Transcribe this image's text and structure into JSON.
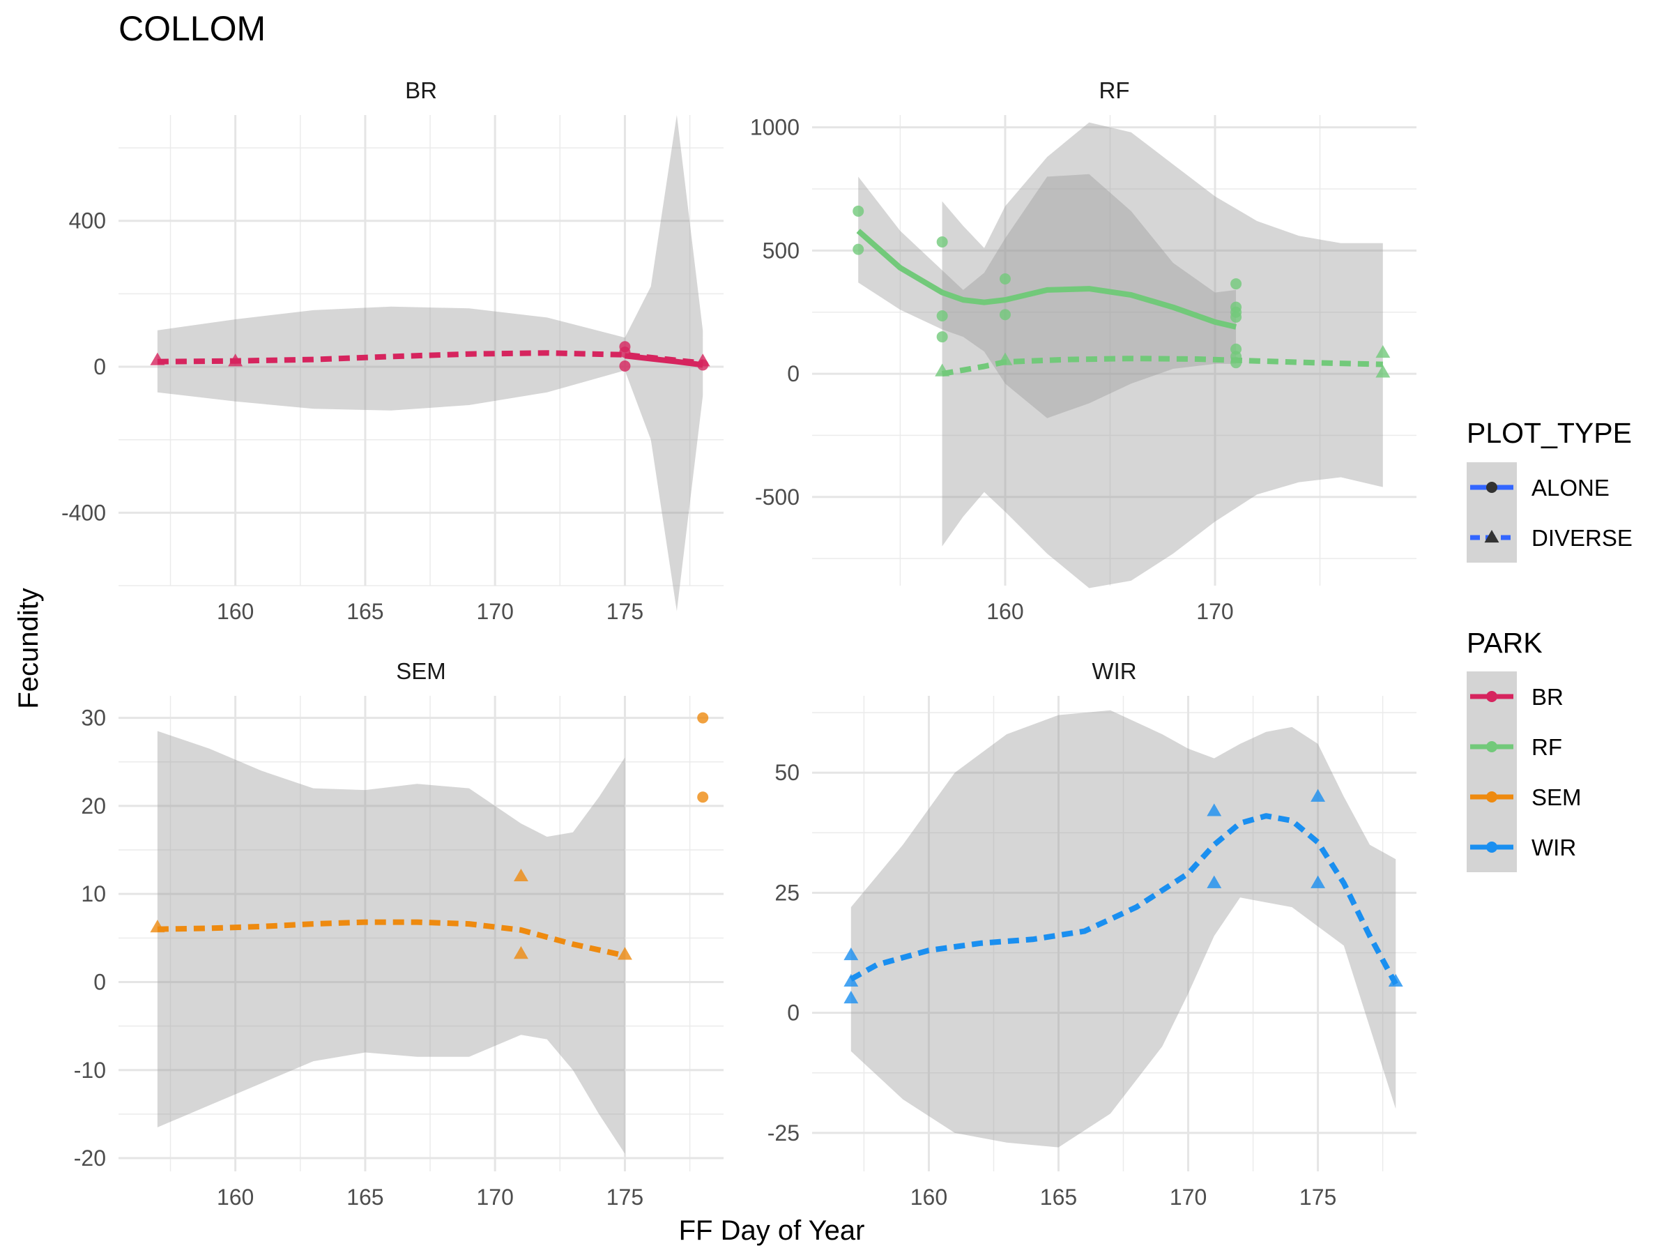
{
  "title": "COLLOM",
  "xlabel": "FF Day of Year",
  "ylabel": "Fecundity",
  "colors": {
    "BR": "#D6245E",
    "RF": "#72C97A",
    "SEM": "#EE8A0F",
    "WIR": "#1A8FF0"
  },
  "legend": {
    "plot_type_title": "PLOT_TYPE",
    "plot_type_items": [
      {
        "label": "ALONE",
        "shape": "circle",
        "line": "solid"
      },
      {
        "label": "DIVERSE",
        "shape": "triangle",
        "line": "dashed"
      }
    ],
    "park_title": "PARK",
    "park_items": [
      {
        "label": "BR",
        "color_key": "BR"
      },
      {
        "label": "RF",
        "color_key": "RF"
      },
      {
        "label": "SEM",
        "color_key": "SEM"
      },
      {
        "label": "WIR",
        "color_key": "WIR"
      }
    ],
    "line_color": "#3366FF",
    "shape_color": "#333333"
  },
  "chart_data": [
    {
      "type": "scatter",
      "panel": "BR",
      "color_key": "BR",
      "xlim": [
        155.5,
        178.8
      ],
      "ylim": [
        -600,
        690
      ],
      "xticks": [
        160,
        165,
        170,
        175
      ],
      "yticks": [
        -400,
        0,
        400
      ],
      "minor_x": [
        157.5,
        162.5,
        167.5,
        172.5,
        177.5
      ],
      "minor_y": [
        -600,
        -200,
        200,
        600
      ],
      "ribbons": [
        {
          "x": [
            157,
            160,
            163,
            166,
            169,
            172,
            175,
            176,
            177,
            178
          ],
          "lower": [
            -70,
            -95,
            -115,
            -120,
            -105,
            -70,
            -10,
            -200,
            -670,
            -80
          ],
          "upper": [
            100,
            130,
            155,
            165,
            160,
            135,
            80,
            220,
            690,
            100
          ]
        }
      ],
      "lines": [
        {
          "dash": true,
          "x": [
            157,
            160,
            163,
            166,
            169,
            172,
            175,
            178
          ],
          "y": [
            14,
            16,
            20,
            28,
            35,
            38,
            33,
            10
          ]
        },
        {
          "dash": false,
          "x": [
            175,
            176,
            177,
            178
          ],
          "y": [
            30,
            22,
            14,
            5
          ]
        }
      ],
      "points": [
        {
          "x": 157,
          "y": 18,
          "shape": "triangle"
        },
        {
          "x": 160,
          "y": 15,
          "shape": "triangle"
        },
        {
          "x": 175,
          "y": 55,
          "shape": "circle"
        },
        {
          "x": 175,
          "y": 40,
          "shape": "circle"
        },
        {
          "x": 175,
          "y": 2,
          "shape": "circle"
        },
        {
          "x": 178,
          "y": 15,
          "shape": "triangle"
        },
        {
          "x": 178,
          "y": 5,
          "shape": "circle"
        }
      ]
    },
    {
      "type": "scatter",
      "panel": "RF",
      "color_key": "RF",
      "xlim": [
        150.8,
        179.6
      ],
      "ylim": [
        -860,
        1050
      ],
      "xticks": [
        160,
        170
      ],
      "yticks": [
        -500,
        0,
        500,
        1000
      ],
      "minor_x": [
        155,
        165,
        175
      ],
      "minor_y": [
        -750,
        -250,
        250,
        750
      ],
      "ribbons": [
        {
          "x": [
            153,
            155,
            157,
            158,
            159,
            160,
            162,
            164,
            166,
            168,
            170,
            171
          ],
          "lower": [
            370,
            260,
            180,
            150,
            90,
            -40,
            -180,
            -120,
            -40,
            20,
            40,
            40
          ],
          "upper": [
            800,
            580,
            420,
            340,
            410,
            550,
            800,
            810,
            660,
            450,
            330,
            340
          ]
        },
        {
          "x": [
            157,
            158,
            159,
            160,
            162,
            164,
            166,
            168,
            170,
            172,
            174,
            176,
            178
          ],
          "lower": [
            -700,
            -580,
            -480,
            -560,
            -730,
            -870,
            -840,
            -730,
            -600,
            -490,
            -440,
            -420,
            -460
          ],
          "upper": [
            700,
            600,
            510,
            680,
            880,
            1020,
            980,
            850,
            720,
            620,
            560,
            530,
            530
          ]
        }
      ],
      "lines": [
        {
          "dash": false,
          "x": [
            153,
            155,
            157,
            158,
            159,
            160,
            162,
            164,
            166,
            168,
            170,
            171
          ],
          "y": [
            580,
            430,
            330,
            300,
            290,
            300,
            340,
            345,
            320,
            270,
            210,
            190
          ]
        },
        {
          "dash": true,
          "x": [
            157,
            159,
            160,
            163,
            166,
            169,
            172,
            175,
            178
          ],
          "y": [
            0,
            30,
            48,
            58,
            62,
            60,
            52,
            44,
            38
          ]
        }
      ],
      "points": [
        {
          "x": 153,
          "y": 660,
          "shape": "circle"
        },
        {
          "x": 153,
          "y": 505,
          "shape": "circle"
        },
        {
          "x": 157,
          "y": 535,
          "shape": "circle"
        },
        {
          "x": 157,
          "y": 235,
          "shape": "circle"
        },
        {
          "x": 157,
          "y": 150,
          "shape": "circle"
        },
        {
          "x": 157,
          "y": 10,
          "shape": "triangle"
        },
        {
          "x": 160,
          "y": 385,
          "shape": "circle"
        },
        {
          "x": 160,
          "y": 240,
          "shape": "circle"
        },
        {
          "x": 160,
          "y": 55,
          "shape": "triangle"
        },
        {
          "x": 171,
          "y": 365,
          "shape": "circle"
        },
        {
          "x": 171,
          "y": 270,
          "shape": "circle"
        },
        {
          "x": 171,
          "y": 250,
          "shape": "circle"
        },
        {
          "x": 171,
          "y": 230,
          "shape": "circle"
        },
        {
          "x": 171,
          "y": 100,
          "shape": "circle"
        },
        {
          "x": 171,
          "y": 70,
          "shape": "circle"
        },
        {
          "x": 171,
          "y": 45,
          "shape": "circle"
        },
        {
          "x": 178,
          "y": 85,
          "shape": "triangle"
        },
        {
          "x": 178,
          "y": 5,
          "shape": "triangle"
        }
      ]
    },
    {
      "type": "scatter",
      "panel": "SEM",
      "color_key": "SEM",
      "xlim": [
        155.5,
        178.8
      ],
      "ylim": [
        -21.5,
        32.5
      ],
      "xticks": [
        160,
        165,
        170,
        175
      ],
      "yticks": [
        -20,
        -10,
        0,
        10,
        20,
        30
      ],
      "minor_x": [
        157.5,
        162.5,
        167.5,
        172.5,
        177.5
      ],
      "minor_y": [
        -15,
        -5,
        5,
        15,
        25
      ],
      "ribbons": [
        {
          "x": [
            157,
            159,
            161,
            163,
            165,
            167,
            169,
            171,
            172,
            173,
            174,
            175
          ],
          "lower": [
            -16.5,
            -14,
            -11.5,
            -9,
            -8,
            -8.5,
            -8.5,
            -6,
            -6.5,
            -10,
            -15,
            -19.5
          ],
          "upper": [
            28.5,
            26.5,
            24,
            22,
            21.8,
            22.5,
            22,
            18,
            16.5,
            17,
            21,
            25.5
          ]
        }
      ],
      "lines": [
        {
          "dash": true,
          "x": [
            157,
            159,
            161,
            163,
            165,
            167,
            169,
            171,
            173,
            175
          ],
          "y": [
            6,
            6.1,
            6.3,
            6.6,
            6.8,
            6.8,
            6.6,
            5.9,
            4.3,
            3
          ]
        }
      ],
      "points": [
        {
          "x": 157,
          "y": 6.2,
          "shape": "triangle"
        },
        {
          "x": 171,
          "y": 12,
          "shape": "triangle"
        },
        {
          "x": 171,
          "y": 3.2,
          "shape": "triangle"
        },
        {
          "x": 175,
          "y": 3.1,
          "shape": "triangle"
        },
        {
          "x": 178,
          "y": 30,
          "shape": "circle"
        },
        {
          "x": 178,
          "y": 21,
          "shape": "circle"
        }
      ]
    },
    {
      "type": "scatter",
      "panel": "WIR",
      "color_key": "WIR",
      "xlim": [
        155.5,
        178.8
      ],
      "ylim": [
        -33,
        66
      ],
      "xticks": [
        160,
        165,
        170,
        175
      ],
      "yticks": [
        -25,
        0,
        25,
        50
      ],
      "minor_x": [
        157.5,
        162.5,
        167.5,
        172.5,
        177.5
      ],
      "minor_y": [
        -12.5,
        12.5,
        37.5,
        62.5
      ],
      "ribbons": [
        {
          "x": [
            157,
            159,
            161,
            163,
            165,
            167,
            169,
            170,
            171,
            172,
            173,
            174,
            175,
            176,
            177,
            178
          ],
          "lower": [
            -8,
            -18,
            -25,
            -27,
            -28,
            -21,
            -7,
            4,
            16,
            24,
            23,
            22,
            18,
            14,
            -3,
            -20
          ],
          "upper": [
            22,
            35,
            50,
            58,
            62,
            63,
            58,
            55,
            53,
            56,
            58.5,
            59.5,
            56,
            45,
            35,
            32
          ]
        }
      ],
      "lines": [
        {
          "dash": true,
          "x": [
            157,
            158,
            160,
            162,
            164,
            166,
            168,
            170,
            171,
            172,
            173,
            174,
            175,
            176,
            177,
            178
          ],
          "y": [
            7,
            10,
            13,
            14.5,
            15.3,
            17,
            22,
            29,
            35,
            39.5,
            41,
            40,
            35.5,
            27,
            16,
            6
          ]
        }
      ],
      "points": [
        {
          "x": 157,
          "y": 12,
          "shape": "triangle"
        },
        {
          "x": 157,
          "y": 6.5,
          "shape": "triangle"
        },
        {
          "x": 157,
          "y": 3,
          "shape": "triangle"
        },
        {
          "x": 171,
          "y": 42,
          "shape": "triangle"
        },
        {
          "x": 171,
          "y": 27,
          "shape": "triangle"
        },
        {
          "x": 175,
          "y": 45,
          "shape": "triangle"
        },
        {
          "x": 175,
          "y": 27,
          "shape": "triangle"
        },
        {
          "x": 178,
          "y": 6.5,
          "shape": "triangle"
        }
      ]
    }
  ]
}
